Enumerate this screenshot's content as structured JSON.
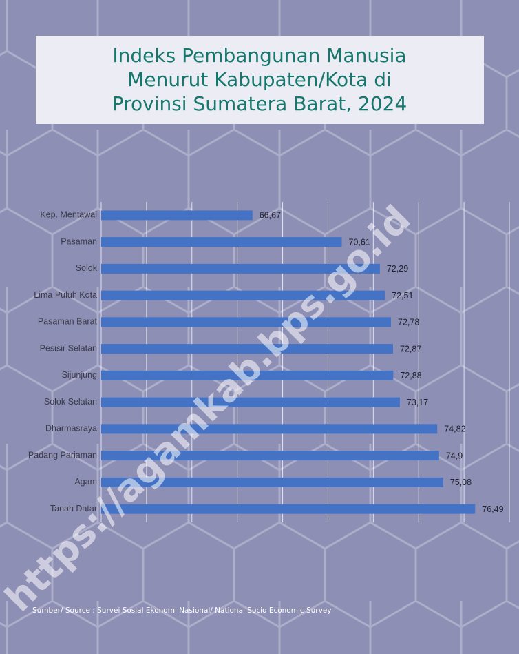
{
  "chart_data": {
    "type": "barh",
    "title": [
      "Indeks Pembangunan Manusia",
      "Menurut Kabupaten/Kota di",
      "Provinsi Sumatera Barat, 2024"
    ],
    "categories": [
      "Kep. Mentawai",
      "Pasaman",
      "Solok",
      "Lima Puluh Kota",
      "Pasaman Barat",
      "Pesisir Selatan",
      "Sijunjung",
      "Solok Selatan",
      "Dharmasraya",
      "Padang Pariaman",
      "Agam",
      "Tanah Datar"
    ],
    "values": [
      66.67,
      70.61,
      72.29,
      72.51,
      72.78,
      72.87,
      72.88,
      73.17,
      74.82,
      74.9,
      75.08,
      76.49
    ],
    "value_labels": [
      "66,67",
      "70,61",
      "72,29",
      "72,51",
      "72,78",
      "72,87",
      "72,88",
      "73,17",
      "74,82",
      "74,9",
      "75,08",
      "76,49"
    ],
    "color": "#4472c4",
    "xlim": [
      60,
      78
    ],
    "xticks": [
      60,
      62,
      64,
      66,
      68,
      70,
      72,
      74,
      76,
      78
    ],
    "grid": true,
    "source": "Sumber/ Source : Survei Sosial Ekonomi Nasional/ National Socio Economic Survey",
    "watermark": "https://agamkab.bps.go.id"
  }
}
